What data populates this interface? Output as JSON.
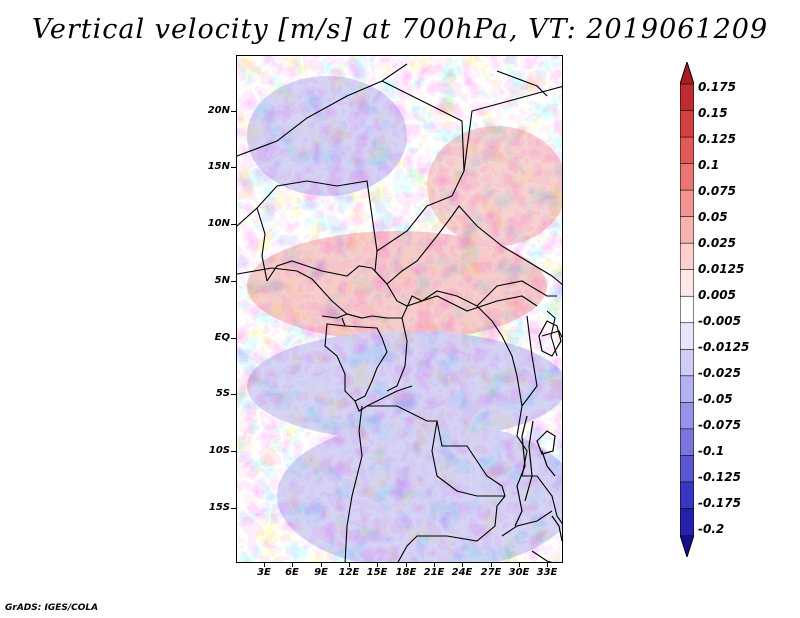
{
  "title": "Vertical velocity [m/s] at 700hPa, VT: 2019061209",
  "credit": "GrADS: IGES/COLA",
  "map": {
    "lat_labels": [
      "20N",
      "15N",
      "10N",
      "5N",
      "EQ",
      "5S",
      "10S",
      "15S"
    ],
    "lon_labels": [
      "3E",
      "6E",
      "9E",
      "12E",
      "15E",
      "18E",
      "21E",
      "24E",
      "27E",
      "30E",
      "33E"
    ]
  },
  "colorbar": {
    "labels": [
      "0.175",
      "0.15",
      "0.125",
      "0.1",
      "0.075",
      "0.05",
      "0.025",
      "0.0125",
      "0.005",
      "-0.005",
      "-0.0125",
      "-0.025",
      "-0.05",
      "-0.075",
      "-0.1",
      "-0.125",
      "-0.175",
      "-0.2"
    ],
    "colors": [
      "#a51d22",
      "#be2c2f",
      "#d24140",
      "#e05b58",
      "#ea7673",
      "#f39492",
      "#f8b3b1",
      "#fbd0cd",
      "#fde8e6",
      "#ffffff",
      "#e7e6fb",
      "#cfcdf6",
      "#b3b1f0",
      "#9794e8",
      "#7a76de",
      "#5b57d2",
      "#3b36c2",
      "#2720aa",
      "#160f8c"
    ]
  }
}
